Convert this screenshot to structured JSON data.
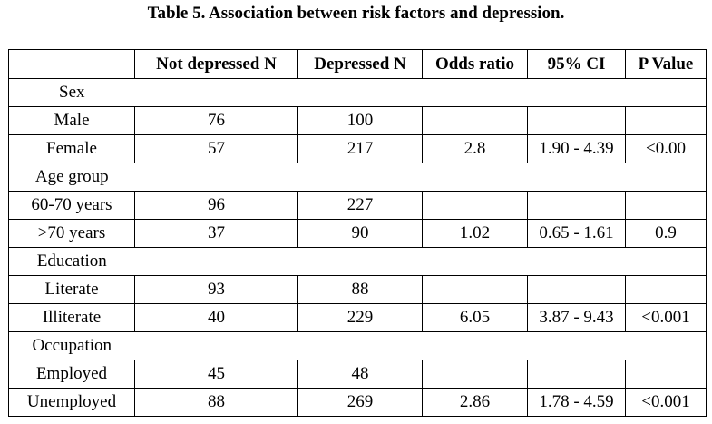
{
  "caption": "Table 5. Association between risk factors and depression.",
  "table": {
    "headers": [
      "",
      "Not depressed N",
      "Depressed N",
      "Odds ratio",
      "95% CI",
      "P Value"
    ],
    "groups": [
      {
        "label": "Sex",
        "rows": [
          [
            "Male",
            "76",
            "100",
            "",
            "",
            ""
          ],
          [
            "Female",
            "57",
            "217",
            "2.8",
            "1.90 - 4.39",
            "<0.00"
          ]
        ]
      },
      {
        "label": "Age group",
        "rows": [
          [
            "60-70 years",
            "96",
            "227",
            "",
            "",
            ""
          ],
          [
            ">70 years",
            "37",
            "90",
            "1.02",
            "0.65 - 1.61",
            "0.9"
          ]
        ]
      },
      {
        "label": "Education",
        "rows": [
          [
            "Literate",
            "93",
            "88",
            "",
            "",
            ""
          ],
          [
            "Illiterate",
            "40",
            "229",
            "6.05",
            "3.87 - 9.43",
            "<0.001"
          ]
        ]
      },
      {
        "label": "Occupation",
        "rows": [
          [
            "Employed",
            "45",
            "48",
            "",
            "",
            ""
          ],
          [
            "Unemployed",
            "88",
            "269",
            "2.86",
            "1.78 - 4.59",
            "<0.001"
          ]
        ]
      }
    ]
  }
}
